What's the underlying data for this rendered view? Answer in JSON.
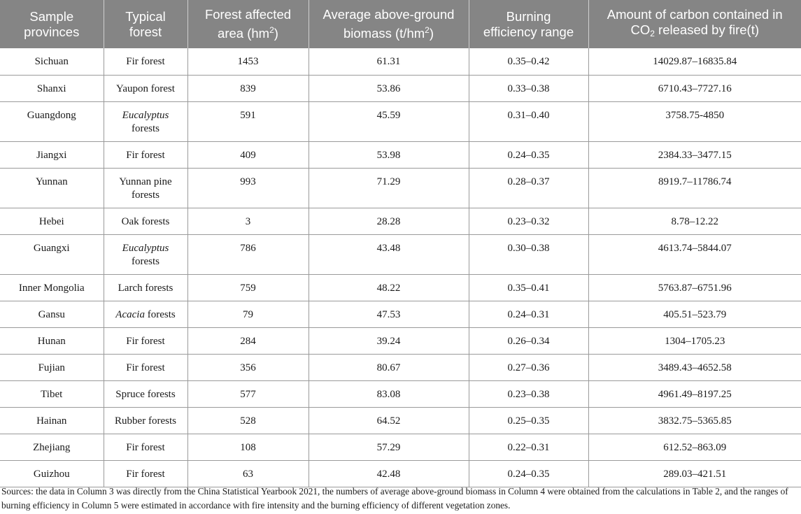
{
  "headers": {
    "provinces": {
      "line1": "Sample",
      "line2": "provinces"
    },
    "forest": {
      "line1": "Typical",
      "line2": "forest"
    },
    "area": {
      "line1": "Forest affected",
      "line2_pre": "area (hm",
      "sup": "2",
      "line2_post": ")"
    },
    "biomass": {
      "line1": "Average above-ground",
      "line2_pre": "biomass (t/hm",
      "sup": "2",
      "line2_post": ")"
    },
    "efficiency": {
      "line1": "Burning",
      "line2": "efficiency range"
    },
    "carbon": {
      "line1": "Amount of carbon contained in",
      "line2_pre": "CO",
      "sub": "2",
      "line2_post": " released by fire(t)"
    }
  },
  "rows": [
    {
      "province": "Sichuan",
      "forest": {
        "main": "Fir forest"
      },
      "area": "1453",
      "biomass": "61.31",
      "efficiency": "0.35–0.42",
      "carbon": "14029.87–16835.84"
    },
    {
      "province": "Shanxi",
      "forest": {
        "main": "Yaupon forest"
      },
      "area": "839",
      "biomass": "53.86",
      "efficiency": "0.33–0.38",
      "carbon": "6710.43–7727.16"
    },
    {
      "province": "Guangdong",
      "forest": {
        "ital": "Eucalyptus",
        "rest": "forests"
      },
      "area": "591",
      "biomass": "45.59",
      "efficiency": "0.31–0.40",
      "carbon": "3758.75-4850"
    },
    {
      "province": "Jiangxi",
      "forest": {
        "main": "Fir forest"
      },
      "area": "409",
      "biomass": "53.98",
      "efficiency": "0.24–0.35",
      "carbon": "2384.33–3477.15"
    },
    {
      "province": "Yunnan",
      "forest": {
        "line1": "Yunnan pine",
        "line2": "forests"
      },
      "area": "993",
      "biomass": "71.29",
      "efficiency": "0.28–0.37",
      "carbon": "8919.7–11786.74"
    },
    {
      "province": "Hebei",
      "forest": {
        "main": "Oak forests"
      },
      "area": "3",
      "biomass": "28.28",
      "efficiency": "0.23–0.32",
      "carbon": "8.78–12.22"
    },
    {
      "province": "Guangxi",
      "forest": {
        "ital": "Eucalyptus",
        "rest": "forests"
      },
      "area": "786",
      "biomass": "43.48",
      "efficiency": "0.30–0.38",
      "carbon": "4613.74–5844.07"
    },
    {
      "province": "Inner Mongolia",
      "forest": {
        "main": "Larch forests"
      },
      "area": "759",
      "biomass": "48.22",
      "efficiency": "0.35–0.41",
      "carbon": "5763.87–6751.96"
    },
    {
      "province": "Gansu",
      "forest": {
        "ital": "Acacia",
        "rest": " forests"
      },
      "area": "79",
      "biomass": "47.53",
      "efficiency": "0.24–0.31",
      "carbon": "405.51–523.79"
    },
    {
      "province": "Hunan",
      "forest": {
        "main": "Fir forest"
      },
      "area": "284",
      "biomass": "39.24",
      "efficiency": "0.26–0.34",
      "carbon": "1304–1705.23"
    },
    {
      "province": "Fujian",
      "forest": {
        "main": "Fir forest"
      },
      "area": "356",
      "biomass": "80.67",
      "efficiency": "0.27–0.36",
      "carbon": "3489.43–4652.58"
    },
    {
      "province": "Tibet",
      "forest": {
        "main": "Spruce forests"
      },
      "area": "577",
      "biomass": "83.08",
      "efficiency": "0.23–0.38",
      "carbon": "4961.49–8197.25"
    },
    {
      "province": "Hainan",
      "forest": {
        "main": "Rubber forests"
      },
      "area": "528",
      "biomass": "64.52",
      "efficiency": "0.25–0.35",
      "carbon": "3832.75–5365.85"
    },
    {
      "province": "Zhejiang",
      "forest": {
        "main": "Fir forest"
      },
      "area": "108",
      "biomass": "57.29",
      "efficiency": "0.22–0.31",
      "carbon": "612.52–863.09"
    },
    {
      "province": "Guizhou",
      "forest": {
        "main": "Fir forest"
      },
      "area": "63",
      "biomass": "42.48",
      "efficiency": "0.24–0.35",
      "carbon": "289.03–421.51"
    }
  ],
  "footnote": "Sources: the data in Column 3 was directly from the China Statistical Yearbook 2021, the numbers of average above-ground biomass in Column 4 were obtained from the calculations in Table 2, and the ranges of burning efficiency in Column 5 were estimated in accordance with fire intensity and the burning efficiency of different vegetation zones."
}
